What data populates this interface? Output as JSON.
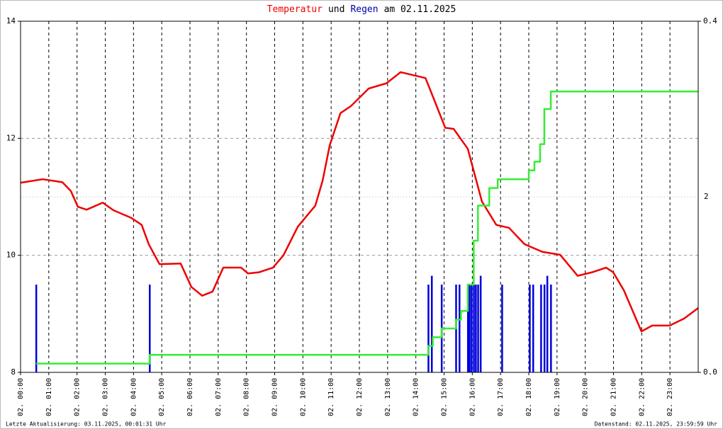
{
  "chart_data": {
    "type": "line",
    "title_parts": [
      {
        "text": "Temperatur",
        "color": "#ee0000"
      },
      {
        "text": "und",
        "color": "#000000"
      },
      {
        "text": "Regen",
        "color": "#0000aa"
      },
      {
        "text": "am 02.11.2025",
        "color": "#000000"
      }
    ],
    "xlim": [
      0,
      24
    ],
    "xticks": [
      {
        "value": 0,
        "label": "02. 00:00"
      },
      {
        "value": 1,
        "label": "02. 01:00"
      },
      {
        "value": 2,
        "label": "02. 02:00"
      },
      {
        "value": 3,
        "label": "02. 03:00"
      },
      {
        "value": 4,
        "label": "02. 04:00"
      },
      {
        "value": 5,
        "label": "02. 05:00"
      },
      {
        "value": 6,
        "label": "02. 06:00"
      },
      {
        "value": 7,
        "label": "02. 07:00"
      },
      {
        "value": 8,
        "label": "02. 08:00"
      },
      {
        "value": 9,
        "label": "02. 09:00"
      },
      {
        "value": 10,
        "label": "02. 10:00"
      },
      {
        "value": 11,
        "label": "02. 11:00"
      },
      {
        "value": 12,
        "label": "02. 12:00"
      },
      {
        "value": 13,
        "label": "02. 13:00"
      },
      {
        "value": 14,
        "label": "02. 14:00"
      },
      {
        "value": 15,
        "label": "02. 15:00"
      },
      {
        "value": 16,
        "label": "02. 16:00"
      },
      {
        "value": 17,
        "label": "02. 17:00"
      },
      {
        "value": 18,
        "label": "02. 18:00"
      },
      {
        "value": 19,
        "label": "02. 19:00"
      },
      {
        "value": 20,
        "label": "02. 20:00"
      },
      {
        "value": 21,
        "label": "02. 21:00"
      },
      {
        "value": 22,
        "label": "02. 22:00"
      },
      {
        "value": 23,
        "label": "02. 23:00"
      }
    ],
    "ylim": [
      8,
      14
    ],
    "yticks": [
      8,
      10,
      12,
      14
    ],
    "y2lim": [
      0,
      0.4
    ],
    "y2ticks": [
      {
        "value": 0,
        "label": "0.0"
      },
      {
        "value": 0.4,
        "label": "0.4"
      }
    ],
    "y3lim": [
      0,
      4
    ],
    "y3ticks": [
      2
    ],
    "y3color": "#33ee33",
    "grid": true,
    "series": [
      {
        "kind": "line",
        "axis": "y",
        "color": "#ee0000",
        "x": [
          0,
          0.78,
          1.48,
          1.78,
          2.03,
          2.34,
          2.91,
          3.29,
          3.92,
          4.29,
          4.54,
          4.92,
          5.67,
          6.05,
          6.43,
          6.8,
          7.18,
          7.81,
          8.06,
          8.44,
          8.94,
          9.31,
          9.82,
          10.44,
          10.7,
          10.95,
          11.33,
          11.7,
          12.33,
          12.96,
          13.46,
          14.34,
          14.59,
          15.04,
          15.34,
          15.84,
          16.34,
          16.85,
          17.3,
          17.85,
          18.48,
          19.11,
          19.73,
          20.24,
          20.74,
          20.99,
          21.37,
          21.99,
          22.37,
          22.99,
          23.5,
          24
        ],
        "values": [
          11.24,
          11.3,
          11.25,
          11.1,
          10.83,
          10.78,
          10.9,
          10.77,
          10.64,
          10.52,
          10.19,
          9.85,
          9.86,
          9.46,
          9.31,
          9.38,
          9.79,
          9.79,
          9.69,
          9.71,
          9.79,
          10.0,
          10.49,
          10.85,
          11.28,
          11.88,
          12.43,
          12.55,
          12.85,
          12.94,
          13.13,
          13.03,
          12.73,
          12.18,
          12.16,
          11.82,
          10.92,
          10.52,
          10.47,
          10.19,
          10.06,
          10.01,
          9.65,
          9.71,
          9.79,
          9.71,
          9.4,
          8.7,
          8.8,
          8.8,
          8.92,
          9.1
        ]
      },
      {
        "kind": "bar",
        "axis": "y2",
        "color": "#0000dd",
        "x": [
          0.55,
          4.57,
          14.44,
          14.56,
          14.91,
          15.42,
          15.54,
          15.84,
          15.9,
          15.97,
          16.05,
          16.12,
          16.2,
          16.29,
          17.05,
          18.03,
          18.15,
          18.43,
          18.55,
          18.65,
          18.78
        ],
        "values": [
          0.1,
          0.1,
          0.1,
          0.11,
          0.1,
          0.1,
          0.1,
          0.1,
          0.1,
          0.1,
          0.1,
          0.1,
          0.1,
          0.11,
          0.1,
          0.1,
          0.1,
          0.1,
          0.1,
          0.11,
          0.1
        ]
      },
      {
        "kind": "step",
        "axis": "y3",
        "color": "#33ee33",
        "x": [
          0.55,
          4.57,
          14.44,
          14.6,
          14.91,
          15.42,
          15.6,
          15.84,
          16.05,
          16.2,
          16.6,
          16.9,
          18.0,
          18.2,
          18.4,
          18.55,
          18.78,
          24
        ],
        "values": [
          0.1,
          0.2,
          0.3,
          0.4,
          0.5,
          0.6,
          0.7,
          1.0,
          1.5,
          1.9,
          2.1,
          2.2,
          2.3,
          2.4,
          2.6,
          3.0,
          3.2,
          3.2
        ]
      }
    ]
  },
  "footer": {
    "left": "Letzte Aktualisierung: 03.11.2025, 00:01:31 Uhr",
    "right": "Datenstand: 02.11.2025, 23:59:59 Uhr"
  }
}
